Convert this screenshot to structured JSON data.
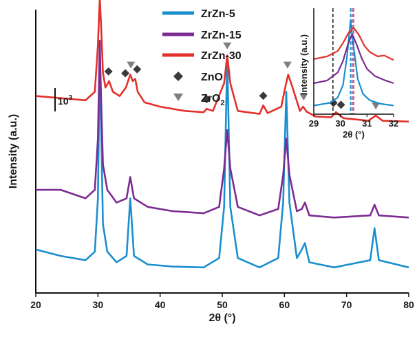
{
  "chart_data": [
    {
      "type": "line",
      "title": "",
      "xlabel": "2θ (°)",
      "ylabel": "Intensity (a.u.)",
      "xlim": [
        20,
        80
      ],
      "xticks": [
        "20",
        "30",
        "40",
        "50",
        "60",
        "70",
        "80"
      ],
      "scale_bar_label": "10",
      "scale_bar_exponent": "3",
      "grid": false,
      "legend_placement": "top-center",
      "series": [
        {
          "name": "ZrZn-5",
          "color": "#1a8fcf",
          "x": [
            20,
            24,
            28,
            29.5,
            30.0,
            30.3,
            30.5,
            30.8,
            31.5,
            33,
            34.6,
            35.2,
            35.8,
            38,
            42,
            47,
            49.5,
            50.3,
            50.8,
            51.3,
            52.5,
            56,
            59,
            59.8,
            60.3,
            60.8,
            62,
            62.8,
            63.3,
            64,
            68,
            73.8,
            74.5,
            75.2,
            80
          ],
          "y": [
            60,
            45,
            35,
            55,
            180,
            505,
            360,
            120,
            55,
            30,
            45,
            180,
            45,
            25,
            20,
            18,
            40,
            160,
            510,
            160,
            40,
            18,
            40,
            170,
            430,
            170,
            40,
            60,
            75,
            30,
            18,
            35,
            110,
            35,
            18
          ]
        },
        {
          "name": "ZrZn-15",
          "color": "#7b2b91",
          "x": [
            20,
            24,
            28,
            29.5,
            30.0,
            30.3,
            30.5,
            30.8,
            31.5,
            33,
            34.6,
            35.2,
            35.8,
            38,
            42,
            47,
            49.5,
            50.3,
            50.8,
            51.3,
            52.5,
            56,
            59,
            59.8,
            60.3,
            60.8,
            62,
            62.8,
            63.3,
            64,
            68,
            73.8,
            74.5,
            75.2,
            80
          ],
          "y": [
            200,
            200,
            180,
            200,
            320,
            550,
            420,
            260,
            200,
            170,
            180,
            230,
            180,
            160,
            150,
            145,
            160,
            250,
            340,
            250,
            160,
            140,
            155,
            235,
            320,
            235,
            150,
            155,
            170,
            140,
            135,
            140,
            165,
            140,
            135
          ]
        },
        {
          "name": "ZrZn-30",
          "color": "#e2302a",
          "x": [
            20,
            24,
            28,
            29.5,
            30.0,
            30.3,
            30.5,
            30.8,
            31.2,
            31.8,
            32.4,
            33.5,
            34.5,
            35.2,
            35.6,
            36.0,
            36.4,
            37.5,
            40,
            44,
            47,
            47.5,
            48.5,
            50.3,
            50.8,
            51.3,
            52.5,
            56,
            56.6,
            57.3,
            59.5,
            60.2,
            60.6,
            61.3,
            62.5,
            63.0,
            63.6,
            65,
            67.5,
            68.3,
            69.5,
            73.5,
            74.7,
            75.8,
            80
          ],
          "y": [
            420,
            415,
            410,
            430,
            540,
            650,
            590,
            475,
            440,
            455,
            430,
            420,
            440,
            470,
            455,
            460,
            430,
            405,
            395,
            385,
            382,
            390,
            385,
            450,
            515,
            450,
            385,
            378,
            398,
            380,
            395,
            445,
            470,
            440,
            385,
            395,
            383,
            372,
            370,
            382,
            368,
            362,
            374,
            362,
            360
          ]
        }
      ],
      "markers": [
        {
          "name": "ZnO",
          "symbol": "diamond",
          "color": "#3a3a3a",
          "x": [
            31.7,
            34.4,
            36.3,
            47.5,
            56.6,
            67.9,
            69.1
          ]
        },
        {
          "name": "ZrO2",
          "label": "ZrO",
          "label_sub": "2",
          "symbol": "triangle-down",
          "color": "#7f7f7f",
          "x": [
            30.3,
            35.3,
            50.8,
            60.5,
            63.1,
            74.7
          ]
        }
      ]
    },
    {
      "type": "line",
      "title": "",
      "xlabel": "2θ (°)",
      "ylabel": "Intensity (a.u.)",
      "xlim": [
        29,
        32
      ],
      "xticks": [
        "29",
        "30",
        "31",
        "32"
      ],
      "grid": false,
      "vlines": [
        {
          "x": 29.72,
          "color": "#222222",
          "style": "dashed"
        },
        {
          "x": 30.38,
          "color": "#1a8fcf",
          "style": "dashed"
        },
        {
          "x": 30.44,
          "color": "#7b2b91",
          "style": "dashed"
        },
        {
          "x": 30.5,
          "color": "#e2302a",
          "style": "dashed"
        }
      ],
      "series": [
        {
          "name": "ZrZn-5",
          "color": "#1a8fcf",
          "x": [
            29,
            29.6,
            29.9,
            30.1,
            30.25,
            30.38,
            30.5,
            30.65,
            30.85,
            31.1,
            31.5,
            32
          ],
          "y": [
            5,
            8,
            14,
            28,
            60,
            100,
            70,
            35,
            18,
            11,
            7,
            5
          ]
        },
        {
          "name": "ZrZn-15",
          "color": "#7b2b91",
          "x": [
            29,
            29.5,
            29.9,
            30.1,
            30.3,
            30.44,
            30.6,
            30.8,
            31.0,
            31.3,
            31.7,
            32
          ],
          "y": [
            30,
            33,
            42,
            55,
            75,
            85,
            74,
            58,
            46,
            38,
            33,
            30
          ]
        },
        {
          "name": "ZrZn-30",
          "color": "#e2302a",
          "x": [
            29,
            29.5,
            29.9,
            30.1,
            30.3,
            30.5,
            30.7,
            30.9,
            31.1,
            31.4,
            31.65,
            31.85,
            32
          ],
          "y": [
            57,
            60,
            66,
            75,
            86,
            92,
            84,
            72,
            65,
            60,
            61,
            58,
            56
          ]
        }
      ]
    }
  ]
}
